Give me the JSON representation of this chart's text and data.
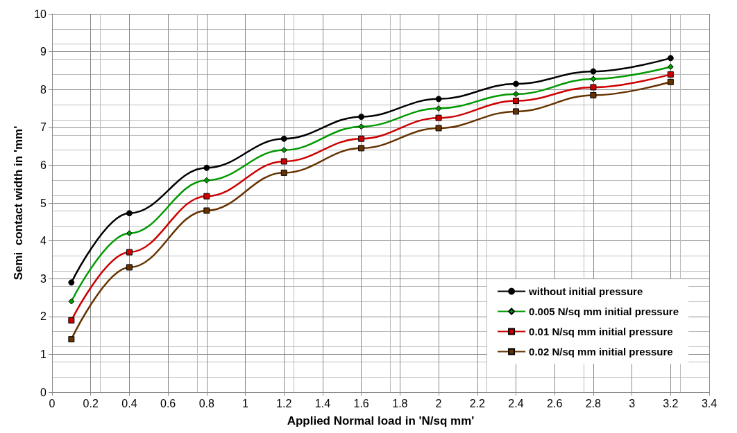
{
  "chart_data": {
    "type": "line",
    "xlabel": "Applied Normal load in 'N/sq mm'",
    "ylabel": "Semi  contact width in 'mm'",
    "x": [
      0.1,
      0.4,
      0.8,
      1.2,
      1.6,
      2.0,
      2.4,
      2.8,
      3.2
    ],
    "series": [
      {
        "name": "without initial pressure",
        "color": "#000000",
        "marker": "circle",
        "values": [
          2.9,
          4.73,
          5.93,
          6.7,
          7.28,
          7.75,
          8.15,
          8.48,
          8.83
        ]
      },
      {
        "name": "0.005 N/sq mm initial pressure",
        "color": "#009900",
        "marker": "diamond",
        "values": [
          2.4,
          4.2,
          5.6,
          6.4,
          7.02,
          7.5,
          7.88,
          8.28,
          8.6
        ]
      },
      {
        "name": "0.01 N/sq mm initial pressure",
        "color": "#cc0000",
        "marker": "square",
        "values": [
          1.9,
          3.7,
          5.18,
          6.1,
          6.7,
          7.25,
          7.7,
          8.06,
          8.4
        ]
      },
      {
        "name": "0.02 N/sq mm initial pressure",
        "color": "#663300",
        "marker": "square",
        "values": [
          1.4,
          3.3,
          4.8,
          5.8,
          6.45,
          6.98,
          7.42,
          7.85,
          8.2
        ]
      }
    ],
    "xlim": [
      0,
      3.4
    ],
    "xticks": [
      0,
      0.2,
      0.4,
      0.6,
      0.8,
      1,
      1.2,
      1.4,
      1.6,
      1.8,
      2,
      2.2,
      2.4,
      2.6,
      2.8,
      3,
      3.2,
      3.4
    ],
    "ylim": [
      0,
      10
    ],
    "yticks": [
      0,
      1,
      2,
      3,
      4,
      5,
      6,
      7,
      8,
      9,
      10
    ],
    "grid": true,
    "legend": "bottom right",
    "line_style": "solid"
  }
}
